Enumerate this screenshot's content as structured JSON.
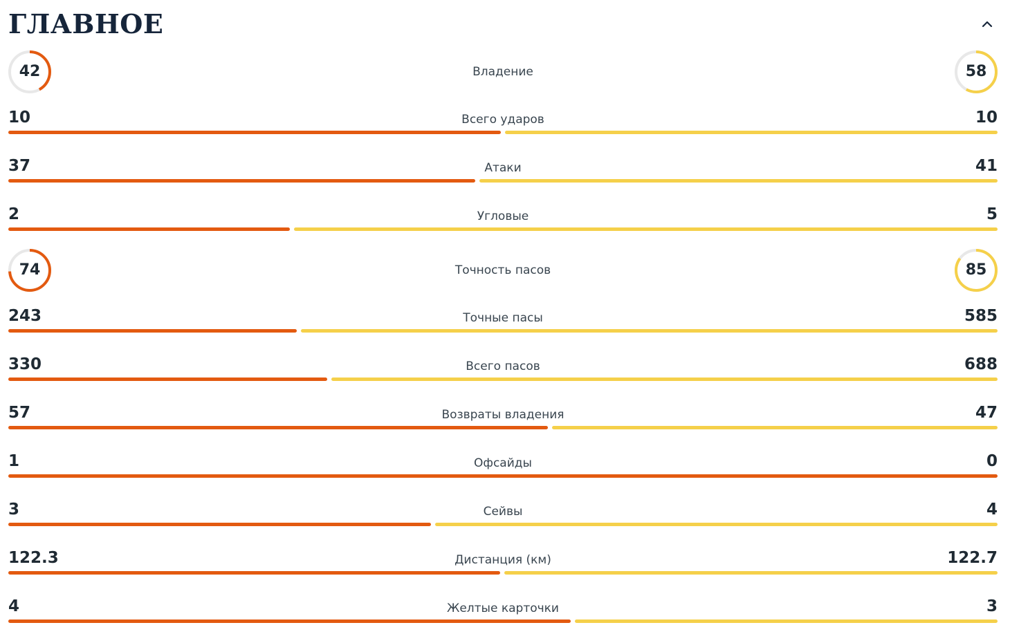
{
  "section": {
    "title": "ГЛАВНОЕ"
  },
  "colors": {
    "home": "#e35a10",
    "away": "#f5d04a",
    "ring_track": "#e8e8e8"
  },
  "icons": {
    "collapse": "chevron-up-icon"
  },
  "stats": [
    {
      "type": "ring",
      "label": "Владение",
      "home": "42",
      "away": "58",
      "home_pct": 42,
      "away_pct": 58
    },
    {
      "type": "bar",
      "label": "Всего ударов",
      "home": "10",
      "away": "10",
      "home_share": 0.5
    },
    {
      "type": "bar",
      "label": "Атаки",
      "home": "37",
      "away": "41",
      "home_share": 0.474
    },
    {
      "type": "bar",
      "label": "Угловые",
      "home": "2",
      "away": "5",
      "home_share": 0.286
    },
    {
      "type": "ring",
      "label": "Точность пасов",
      "home": "74",
      "away": "85",
      "home_pct": 74,
      "away_pct": 85
    },
    {
      "type": "bar",
      "label": "Точные пасы",
      "home": "243",
      "away": "585",
      "home_share": 0.293
    },
    {
      "type": "bar",
      "label": "Всего пасов",
      "home": "330",
      "away": "688",
      "home_share": 0.324
    },
    {
      "type": "bar",
      "label": "Возвраты владения",
      "home": "57",
      "away": "47",
      "home_share": 0.548
    },
    {
      "type": "bar",
      "label": "Офсайды",
      "home": "1",
      "away": "0",
      "home_share": 1.0
    },
    {
      "type": "bar",
      "label": "Сейвы",
      "home": "3",
      "away": "4",
      "home_share": 0.429
    },
    {
      "type": "bar",
      "label": "Дистанция (км)",
      "home": "122.3",
      "away": "122.7",
      "home_share": 0.499
    },
    {
      "type": "bar",
      "label": "Желтые карточки",
      "home": "4",
      "away": "3",
      "home_share": 0.571
    }
  ]
}
